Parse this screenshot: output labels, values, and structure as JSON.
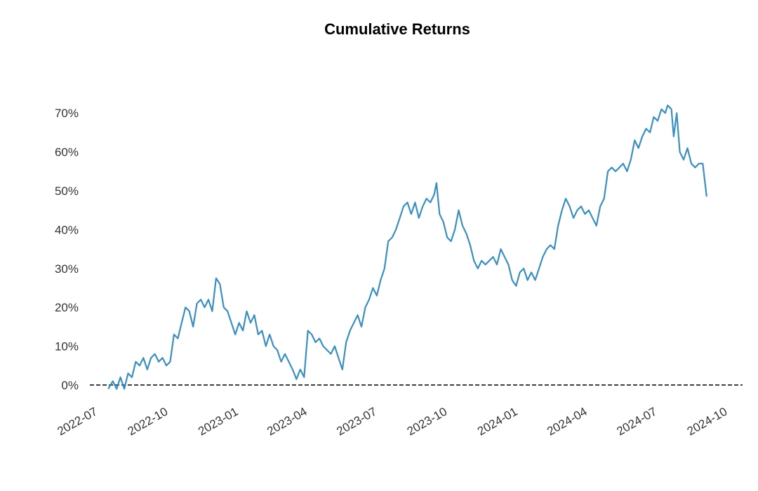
{
  "chart_data": {
    "type": "line",
    "title": "Cumulative Returns",
    "xlabel": "",
    "ylabel": "",
    "y_unit": "%",
    "ylim": [
      -2,
      76
    ],
    "xlim": [
      "2022-06-20",
      "2024-10-20"
    ],
    "x_ticks": [
      "2022-07",
      "2022-10",
      "2023-01",
      "2023-04",
      "2023-07",
      "2023-10",
      "2024-01",
      "2024-04",
      "2024-07",
      "2024-10"
    ],
    "y_ticks": [
      0,
      10,
      20,
      30,
      40,
      50,
      60,
      70
    ],
    "y_tick_labels": [
      "0%",
      "10%",
      "20%",
      "30%",
      "40%",
      "50%",
      "60%",
      "70%"
    ],
    "grid": false,
    "reference_line": {
      "y": 0,
      "style": "dashed",
      "color": "#000000"
    },
    "series": [
      {
        "color": "#3a8fc0",
        "points": [
          [
            "2022-07-14",
            -1
          ],
          [
            "2022-07-20",
            1
          ],
          [
            "2022-07-25",
            -1
          ],
          [
            "2022-07-30",
            2
          ],
          [
            "2022-08-04",
            -1
          ],
          [
            "2022-08-09",
            3
          ],
          [
            "2022-08-14",
            2
          ],
          [
            "2022-08-19",
            6
          ],
          [
            "2022-08-24",
            5
          ],
          [
            "2022-08-29",
            7
          ],
          [
            "2022-09-03",
            4
          ],
          [
            "2022-09-08",
            7
          ],
          [
            "2022-09-13",
            8
          ],
          [
            "2022-09-18",
            6
          ],
          [
            "2022-09-23",
            7
          ],
          [
            "2022-09-28",
            5
          ],
          [
            "2022-10-03",
            6
          ],
          [
            "2022-10-08",
            13
          ],
          [
            "2022-10-13",
            12
          ],
          [
            "2022-10-18",
            16
          ],
          [
            "2022-10-23",
            20
          ],
          [
            "2022-10-28",
            19
          ],
          [
            "2022-11-02",
            15
          ],
          [
            "2022-11-07",
            21
          ],
          [
            "2022-11-12",
            22
          ],
          [
            "2022-11-17",
            20
          ],
          [
            "2022-11-22",
            22
          ],
          [
            "2022-11-27",
            19
          ],
          [
            "2022-12-02",
            27.5
          ],
          [
            "2022-12-07",
            26
          ],
          [
            "2022-12-12",
            20
          ],
          [
            "2022-12-17",
            19
          ],
          [
            "2022-12-22",
            16
          ],
          [
            "2022-12-27",
            13
          ],
          [
            "2023-01-01",
            16
          ],
          [
            "2023-01-06",
            14
          ],
          [
            "2023-01-11",
            19
          ],
          [
            "2023-01-16",
            16
          ],
          [
            "2023-01-21",
            18
          ],
          [
            "2023-01-26",
            13
          ],
          [
            "2023-01-31",
            14
          ],
          [
            "2023-02-05",
            10
          ],
          [
            "2023-02-10",
            13
          ],
          [
            "2023-02-15",
            10
          ],
          [
            "2023-02-20",
            9
          ],
          [
            "2023-02-25",
            6
          ],
          [
            "2023-03-02",
            8
          ],
          [
            "2023-03-07",
            6
          ],
          [
            "2023-03-12",
            4
          ],
          [
            "2023-03-17",
            1.5
          ],
          [
            "2023-03-22",
            4
          ],
          [
            "2023-03-27",
            2
          ],
          [
            "2023-04-01",
            14
          ],
          [
            "2023-04-06",
            13
          ],
          [
            "2023-04-11",
            11
          ],
          [
            "2023-04-16",
            12
          ],
          [
            "2023-04-21",
            10
          ],
          [
            "2023-04-26",
            9
          ],
          [
            "2023-05-01",
            8
          ],
          [
            "2023-05-06",
            10
          ],
          [
            "2023-05-11",
            7
          ],
          [
            "2023-05-16",
            4
          ],
          [
            "2023-05-21",
            11
          ],
          [
            "2023-05-26",
            14
          ],
          [
            "2023-05-31",
            16
          ],
          [
            "2023-06-05",
            18
          ],
          [
            "2023-06-10",
            15
          ],
          [
            "2023-06-15",
            20
          ],
          [
            "2023-06-20",
            22
          ],
          [
            "2023-06-25",
            25
          ],
          [
            "2023-06-30",
            23
          ],
          [
            "2023-07-05",
            27
          ],
          [
            "2023-07-10",
            30
          ],
          [
            "2023-07-15",
            37
          ],
          [
            "2023-07-20",
            38
          ],
          [
            "2023-07-25",
            40
          ],
          [
            "2023-07-30",
            43
          ],
          [
            "2023-08-04",
            46
          ],
          [
            "2023-08-09",
            47
          ],
          [
            "2023-08-14",
            44
          ],
          [
            "2023-08-19",
            47
          ],
          [
            "2023-08-24",
            43
          ],
          [
            "2023-08-29",
            46
          ],
          [
            "2023-09-03",
            48
          ],
          [
            "2023-09-08",
            47
          ],
          [
            "2023-09-13",
            49
          ],
          [
            "2023-09-16",
            52
          ],
          [
            "2023-09-20",
            44
          ],
          [
            "2023-09-25",
            42
          ],
          [
            "2023-09-30",
            38
          ],
          [
            "2023-10-05",
            37
          ],
          [
            "2023-10-10",
            40
          ],
          [
            "2023-10-15",
            45
          ],
          [
            "2023-10-20",
            41
          ],
          [
            "2023-10-25",
            39
          ],
          [
            "2023-10-30",
            36
          ],
          [
            "2023-11-04",
            32
          ],
          [
            "2023-11-09",
            30
          ],
          [
            "2023-11-14",
            32
          ],
          [
            "2023-11-19",
            31
          ],
          [
            "2023-11-24",
            32
          ],
          [
            "2023-11-29",
            33
          ],
          [
            "2023-12-04",
            31
          ],
          [
            "2023-12-09",
            35
          ],
          [
            "2023-12-14",
            33
          ],
          [
            "2023-12-19",
            31
          ],
          [
            "2023-12-24",
            27
          ],
          [
            "2023-12-29",
            25.5
          ],
          [
            "2024-01-03",
            29
          ],
          [
            "2024-01-08",
            30
          ],
          [
            "2024-01-13",
            27
          ],
          [
            "2024-01-18",
            29
          ],
          [
            "2024-01-23",
            27
          ],
          [
            "2024-01-28",
            30
          ],
          [
            "2024-02-02",
            33
          ],
          [
            "2024-02-07",
            35
          ],
          [
            "2024-02-12",
            36
          ],
          [
            "2024-02-17",
            35
          ],
          [
            "2024-02-22",
            41
          ],
          [
            "2024-02-27",
            45
          ],
          [
            "2024-03-03",
            48
          ],
          [
            "2024-03-08",
            46
          ],
          [
            "2024-03-13",
            43
          ],
          [
            "2024-03-18",
            45
          ],
          [
            "2024-03-23",
            46
          ],
          [
            "2024-03-28",
            44
          ],
          [
            "2024-04-02",
            45
          ],
          [
            "2024-04-07",
            43
          ],
          [
            "2024-04-12",
            41
          ],
          [
            "2024-04-17",
            46
          ],
          [
            "2024-04-22",
            48
          ],
          [
            "2024-04-27",
            55
          ],
          [
            "2024-05-02",
            56
          ],
          [
            "2024-05-07",
            55
          ],
          [
            "2024-05-12",
            56
          ],
          [
            "2024-05-17",
            57
          ],
          [
            "2024-05-22",
            55
          ],
          [
            "2024-05-27",
            58
          ],
          [
            "2024-06-01",
            63
          ],
          [
            "2024-06-06",
            61
          ],
          [
            "2024-06-11",
            64
          ],
          [
            "2024-06-16",
            66
          ],
          [
            "2024-06-21",
            65
          ],
          [
            "2024-06-26",
            69
          ],
          [
            "2024-07-01",
            68
          ],
          [
            "2024-07-06",
            71
          ],
          [
            "2024-07-11",
            70
          ],
          [
            "2024-07-14",
            72
          ],
          [
            "2024-07-19",
            71
          ],
          [
            "2024-07-22",
            64
          ],
          [
            "2024-07-26",
            70
          ],
          [
            "2024-07-30",
            60
          ],
          [
            "2024-08-04",
            58
          ],
          [
            "2024-08-09",
            61
          ],
          [
            "2024-08-14",
            57
          ],
          [
            "2024-08-19",
            56
          ],
          [
            "2024-08-24",
            57
          ],
          [
            "2024-08-29",
            57
          ],
          [
            "2024-09-03",
            48.5
          ]
        ]
      }
    ]
  }
}
